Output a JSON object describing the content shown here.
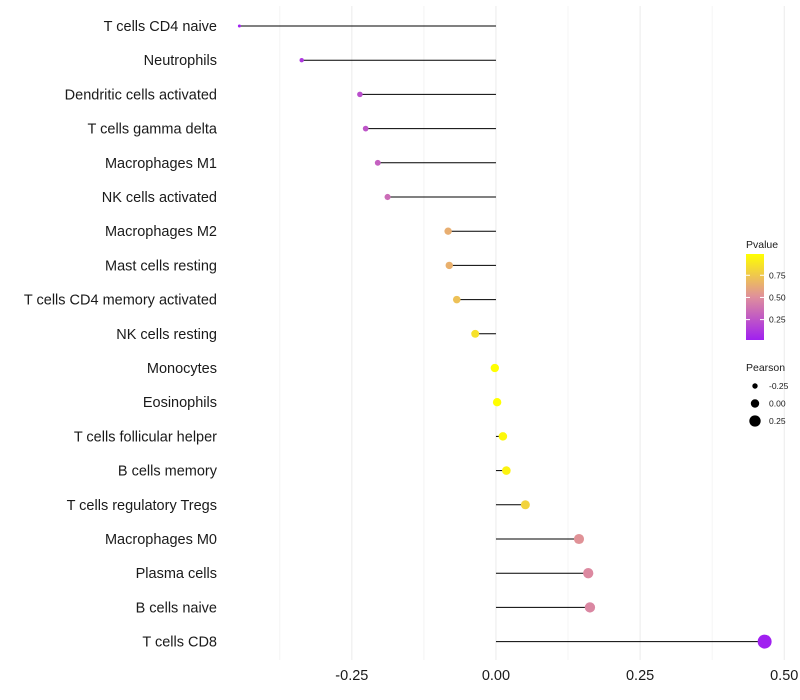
{
  "chart_data": {
    "type": "lollipop",
    "categories": [
      "T cells CD4 naive",
      "Neutrophils",
      "Dendritic cells activated",
      "T cells gamma delta",
      "Macrophages M1",
      "NK cells activated",
      "Macrophages M2",
      "Mast cells resting",
      "T cells CD4 memory activated",
      "NK cells resting",
      "Monocytes",
      "Eosinophils",
      "T cells follicular helper",
      "B cells memory",
      "T cells regulatory  Tregs ",
      "Macrophages M0",
      "Plasma cells",
      "B cells naive",
      "T cells CD8"
    ],
    "values": [
      -0.445,
      -0.337,
      -0.236,
      -0.226,
      -0.205,
      -0.188,
      -0.083,
      -0.081,
      -0.068,
      -0.036,
      -0.002,
      0.002,
      0.012,
      0.018,
      0.051,
      0.144,
      0.16,
      0.163,
      0.466
    ],
    "pvalues": [
      0.02,
      0.12,
      0.22,
      0.25,
      0.3,
      0.35,
      0.64,
      0.65,
      0.72,
      0.86,
      0.99,
      0.99,
      0.96,
      0.94,
      0.8,
      0.52,
      0.48,
      0.47,
      0.02
    ],
    "xticks": [
      -0.25,
      0.0,
      0.25,
      0.5
    ],
    "xtick_labels": [
      "-0.25",
      "0.00",
      "0.25",
      "0.50"
    ],
    "xlim": [
      -0.47,
      0.51
    ],
    "grid": true,
    "xlabel": "",
    "ylabel": "",
    "color_legend": {
      "title": "Pvalue",
      "ticks": [
        0.25,
        0.5,
        0.75
      ],
      "tick_labels": [
        "0.25",
        "0.50",
        "0.75"
      ],
      "range": [
        0.02,
        0.99
      ],
      "low_color": "#a020f0",
      "high_color": "#ffff00"
    },
    "size_legend": {
      "title": "Pearson",
      "values": [
        -0.25,
        0.0,
        0.25
      ],
      "labels": [
        "-0.25",
        "0.00",
        "0.25"
      ]
    },
    "legend_position": "right"
  }
}
